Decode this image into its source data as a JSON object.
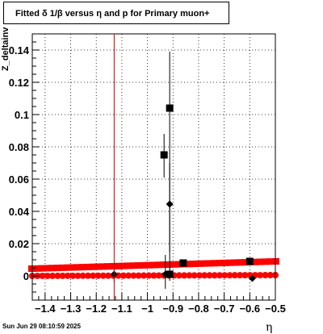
{
  "title": "Fitted δ 1/β versus η and p for Primary muon+",
  "timestamp": "Sun Jun 29 08:10:59 2025",
  "ylabel": "Z_deltainv",
  "xlabel": "η",
  "colors": {
    "red_band": "#ff0000",
    "marker": "#000000",
    "red_line": "#cc0000"
  },
  "chart_data": {
    "type": "scatter",
    "title": "Fitted δ 1/β versus η and p for Primary muon+",
    "xlabel": "η",
    "ylabel": "Z_deltainv",
    "xlim": [
      -1.45,
      -0.5
    ],
    "ylim": [
      -0.015,
      0.15
    ],
    "grid": true,
    "xticks": [
      -1.4,
      -1.3,
      -1.2,
      -1.1,
      -1.0,
      -0.9,
      -0.8,
      -0.7,
      -0.6,
      -0.5
    ],
    "xtick_labels": [
      "−1.4",
      "−1.3",
      "−1.2",
      "−1.1",
      "−1",
      "−0.9",
      "−0.8",
      "−0.7",
      "−0.6",
      "−0.5"
    ],
    "yticks": [
      0,
      0.02,
      0.04,
      0.06,
      0.08,
      0.1,
      0.12,
      0.14
    ],
    "ytick_labels": [
      "0",
      "0.02",
      "0.04",
      "0.06",
      "0.08",
      "0.1",
      "0.12",
      "0.14"
    ],
    "vertical_line_x": -1.13,
    "series": [
      {
        "marker": "square",
        "points": [
          {
            "x": -0.913,
            "y": 0.104,
            "ylow": 0.0,
            "yhigh": 0.139
          },
          {
            "x": -0.935,
            "y": 0.075,
            "ylow": 0.061,
            "yhigh": 0.088
          },
          {
            "x": -0.913,
            "y": 0.001,
            "ylow": -0.003,
            "yhigh": 0.005
          },
          {
            "x": -0.86,
            "y": 0.008,
            "ylow": 0.007,
            "yhigh": 0.009
          },
          {
            "x": -0.6,
            "y": 0.009,
            "ylow": 0.008,
            "yhigh": 0.01
          }
        ]
      },
      {
        "marker": "circle",
        "points": [
          {
            "x": -0.913,
            "y": 0.0445,
            "ylow": 0.015,
            "yhigh": 0.07
          },
          {
            "x": -0.93,
            "y": 0.001,
            "ylow": -0.008,
            "yhigh": 0.013
          },
          {
            "x": -1.13,
            "y": 0.001,
            "ylow": -0.004,
            "yhigh": 0.006
          },
          {
            "x": -0.59,
            "y": -0.0015,
            "ylow": -0.003,
            "yhigh": 0.0
          }
        ]
      },
      {
        "marker": "red-band-upper",
        "x_start": -1.45,
        "x_end": -0.5,
        "y_start": 0.0045,
        "y_end": 0.009
      },
      {
        "marker": "red-band-lower",
        "x_start": -1.45,
        "x_end": -0.5,
        "y_start": 0.0,
        "y_end": 0.0005
      }
    ]
  }
}
